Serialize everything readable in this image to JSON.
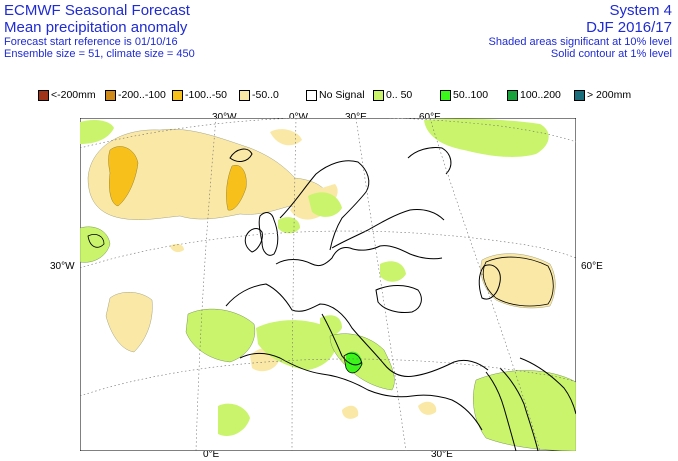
{
  "header": {
    "left": {
      "line1": "ECMWF Seasonal Forecast",
      "line2": "Mean precipitation anomaly",
      "line3": "Forecast start reference is 01/10/16",
      "line4": "Ensemble size = 51, climate size = 450"
    },
    "right": {
      "line1": "System 4",
      "line2": "DJF 2016/17",
      "line3": "Shaded areas significant at 10% level",
      "line4": "Solid contour at 1% level"
    }
  },
  "legend": [
    {
      "label": "<-200mm",
      "color": "#a0341a"
    },
    {
      "label": "-200..-100",
      "color": "#d08a1a"
    },
    {
      "label": "-100..-50",
      "color": "#f7c01a"
    },
    {
      "label": "-50..0",
      "color": "#fae8a6"
    },
    {
      "label": "No Signal",
      "color": "#ffffff"
    },
    {
      "label": "0.. 50",
      "color": "#c9f46c"
    },
    {
      "label": "50..100",
      "color": "#3cf51a"
    },
    {
      "label": "100..200",
      "color": "#1aa23c"
    },
    {
      "label": "> 200mm",
      "color": "#1a6e7c"
    }
  ],
  "map": {
    "top_labels": [
      "30°W",
      "0°W",
      "30°E",
      "60°E"
    ],
    "bottom_labels": [
      "0°E",
      "30°E"
    ],
    "left_label": "30°W",
    "right_label": "60°E"
  },
  "colors": {
    "title_blue": "#1f2bd4",
    "dry": "#fae8a6",
    "dry_strong": "#f7c01a",
    "wet": "#c9f46c",
    "wet_strong": "#3cf51a",
    "wet_100_200": "#1aa23c"
  }
}
